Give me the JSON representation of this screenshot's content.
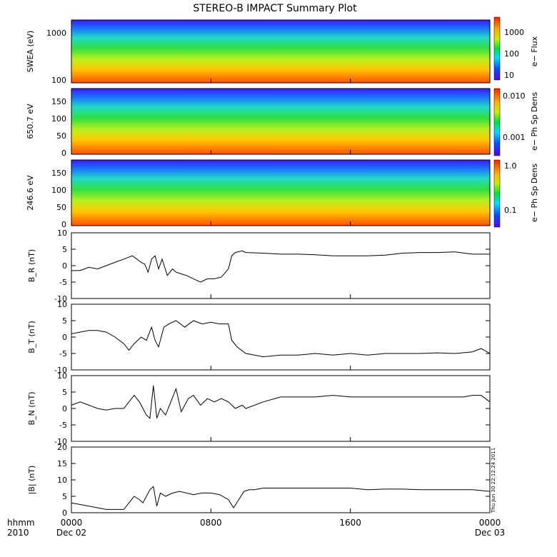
{
  "title": "STEREO-B IMPACT Summary Plot",
  "time_axis": {
    "label_line1": "hhmm",
    "label_line2": "2010",
    "ticks": [
      {
        "label": "0000",
        "sublabel": "Dec 02",
        "hours": 0
      },
      {
        "label": "0800",
        "sublabel": "",
        "hours": 8
      },
      {
        "label": "1600",
        "sublabel": "",
        "hours": 16
      },
      {
        "label": "0000",
        "sublabel": "Dec 03",
        "hours": 24
      }
    ],
    "range_hours": [
      0,
      24
    ]
  },
  "timestamp": "Thu Jun 30 22:12:24 2011",
  "spectrograms": [
    {
      "ylabel": "SWEA (eV)",
      "yticks": [
        "1000",
        "100"
      ],
      "colorbar_label": "e− Flux",
      "colorbar_ticks": [
        "1000",
        "100",
        "10"
      ],
      "scale": "log"
    },
    {
      "ylabel": "650.7 eV",
      "yticks": [
        "150",
        "100",
        "50",
        "0"
      ],
      "colorbar_label": "e− Ph Sp Dens",
      "colorbar_ticks": [
        "0.010",
        "0.001"
      ],
      "scale": "log"
    },
    {
      "ylabel": "246.6 eV",
      "yticks": [
        "150",
        "100",
        "50",
        "0"
      ],
      "colorbar_label": "e− Ph Sp Dens",
      "colorbar_ticks": [
        "1.0",
        "0.1"
      ],
      "scale": "log"
    }
  ],
  "chart_data": [
    {
      "type": "line",
      "name": "BR",
      "ylabel": "B_R (nT)",
      "ylim": [
        -10,
        10
      ],
      "yticks": [
        "10",
        "5",
        "0",
        "-5",
        "-10"
      ],
      "x": [
        0,
        0.5,
        1,
        1.5,
        2,
        2.5,
        3,
        3.5,
        4,
        4.2,
        4.4,
        4.6,
        4.8,
        5,
        5.2,
        5.5,
        5.8,
        6,
        6.3,
        6.6,
        7,
        7.4,
        7.8,
        8.2,
        8.6,
        9,
        9.2,
        9.4,
        9.8,
        10,
        11,
        12,
        13,
        14,
        15,
        16,
        17,
        18,
        19,
        20,
        21,
        22,
        23,
        23.5,
        24
      ],
      "y": [
        -1.5,
        -1.5,
        -0.5,
        -1,
        0,
        1,
        2,
        3,
        1,
        0.5,
        -2,
        2,
        3,
        -1,
        2,
        -3,
        -1,
        -2,
        -2.5,
        -3,
        -4,
        -5,
        -4,
        -4,
        -3.5,
        -1,
        3,
        4,
        4.5,
        4,
        3.8,
        3.5,
        3.5,
        3.3,
        3,
        3,
        3,
        3.2,
        3.8,
        4,
        4,
        4.2,
        3.5,
        3.5,
        3.5
      ]
    },
    {
      "type": "line",
      "name": "BT",
      "ylabel": "B_T (nT)",
      "ylim": [
        -10,
        10
      ],
      "yticks": [
        "10",
        "5",
        "0",
        "-5",
        "-10"
      ],
      "x": [
        0,
        0.5,
        1,
        1.5,
        2,
        2.5,
        3,
        3.3,
        3.6,
        4,
        4.3,
        4.6,
        4.8,
        5,
        5.3,
        5.6,
        6,
        6.5,
        7,
        7.5,
        8,
        8.5,
        9,
        9.2,
        9.5,
        10,
        10.5,
        11,
        12,
        13,
        14,
        15,
        16,
        17,
        18,
        19,
        20,
        21,
        22,
        23,
        23.5,
        24
      ],
      "y": [
        1,
        1.5,
        2,
        2,
        1.5,
        0,
        -2,
        -4,
        -2,
        0,
        -1,
        3,
        -1,
        -3,
        3,
        4,
        5,
        3,
        5,
        4,
        4.5,
        4,
        4,
        -1,
        -3,
        -5,
        -5.5,
        -6,
        -5.5,
        -5.5,
        -5,
        -5.5,
        -5,
        -5.5,
        -5,
        -5,
        -5,
        -4.8,
        -5,
        -4.5,
        -3.5,
        -5
      ]
    },
    {
      "type": "line",
      "name": "BN",
      "ylabel": "B_N (nT)",
      "ylim": [
        -10,
        10
      ],
      "yticks": [
        "10",
        "5",
        "0",
        "-5",
        "-10"
      ],
      "x": [
        0,
        0.5,
        1,
        1.5,
        2,
        2.5,
        3,
        3.3,
        3.6,
        3.9,
        4.1,
        4.3,
        4.5,
        4.7,
        4.9,
        5.1,
        5.4,
        5.7,
        6,
        6.3,
        6.7,
        7,
        7.4,
        7.8,
        8.2,
        8.6,
        9,
        9.4,
        9.8,
        10,
        11,
        12,
        13,
        14,
        15,
        16,
        17,
        18,
        19,
        20,
        21,
        22,
        22.5,
        23,
        23.5,
        24
      ],
      "y": [
        1,
        2,
        1,
        0,
        -0.5,
        0,
        0,
        2,
        4,
        2,
        0,
        -2,
        -3,
        7,
        -3,
        0,
        -2,
        2,
        6,
        -1,
        3,
        4,
        1,
        3,
        2,
        3,
        2,
        0,
        1,
        0,
        2,
        3.5,
        3.5,
        3.5,
        4,
        3.5,
        3.5,
        3.5,
        3.5,
        3.5,
        3.5,
        3.5,
        3.5,
        4,
        4,
        2
      ]
    },
    {
      "type": "line",
      "name": "|B|",
      "ylabel": "|B| (nT)",
      "ylim": [
        0,
        20
      ],
      "yticks": [
        "20",
        "15",
        "10",
        "5",
        "0"
      ],
      "x": [
        0,
        0.5,
        1,
        1.5,
        2,
        2.5,
        3,
        3.3,
        3.6,
        3.9,
        4.1,
        4.3,
        4.5,
        4.7,
        4.9,
        5.1,
        5.4,
        5.8,
        6.2,
        6.6,
        7,
        7.5,
        8,
        8.5,
        9,
        9.3,
        9.6,
        9.9,
        10.2,
        10.5,
        11,
        12,
        13,
        14,
        15,
        16,
        17,
        18,
        19,
        20,
        21,
        22,
        23,
        24
      ],
      "y": [
        3,
        2.5,
        2,
        1.5,
        1,
        1,
        1,
        3,
        5,
        4,
        3,
        5,
        7,
        8,
        2,
        6,
        5,
        6,
        6.5,
        6,
        5.5,
        6,
        6,
        5.5,
        4,
        1.5,
        4,
        6.5,
        7,
        7,
        7.5,
        7.5,
        7.5,
        7.5,
        7.5,
        7.5,
        7,
        7.2,
        7.2,
        7,
        7,
        7,
        7,
        6.5
      ]
    }
  ]
}
